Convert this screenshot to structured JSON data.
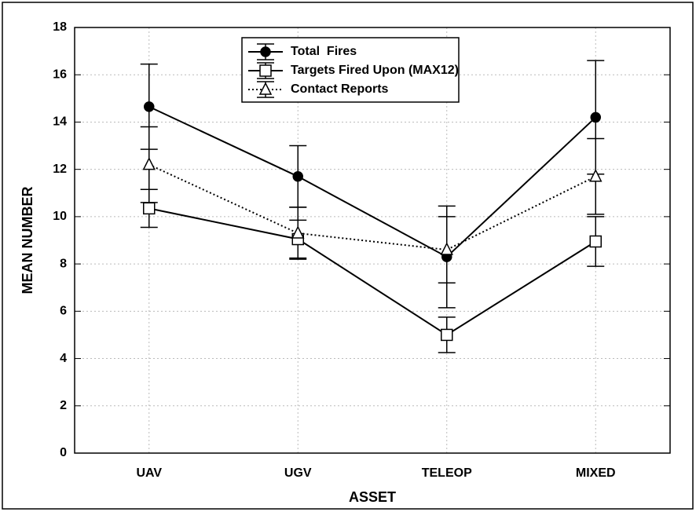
{
  "chart_data": {
    "type": "line",
    "x_label": "ASSET",
    "y_label": "MEAN NUMBER",
    "categories": [
      "UAV",
      "UGV",
      "TELEOP",
      "MIXED"
    ],
    "ylim": [
      0,
      18
    ],
    "yticks": [
      0,
      2,
      4,
      6,
      8,
      10,
      12,
      14,
      16,
      18
    ],
    "grid": true,
    "legend": "top-center",
    "series": [
      {
        "name": "Total  Fires",
        "color": "#000000",
        "marker": "circle",
        "dash": false,
        "values": [
          14.65,
          11.7,
          8.3,
          14.2
        ],
        "errors": [
          1.8,
          1.3,
          2.15,
          2.4
        ]
      },
      {
        "name": "Targets Fired Upon (MAX12)",
        "color": "#000000",
        "marker": "square",
        "dash": false,
        "values": [
          10.35,
          9.05,
          5.0,
          8.95
        ],
        "errors": [
          0.8,
          0.8,
          0.75,
          1.05
        ]
      },
      {
        "name": "Contact Reports",
        "color": "#000000",
        "marker": "triangle",
        "dash": true,
        "values": [
          12.2,
          9.3,
          8.6,
          11.7
        ],
        "errors": [
          1.6,
          1.1,
          1.4,
          1.6
        ]
      }
    ]
  }
}
